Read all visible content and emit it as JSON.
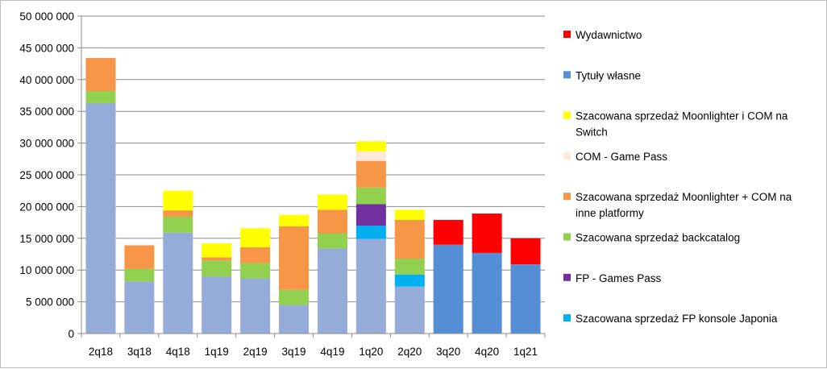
{
  "chart_data": {
    "type": "bar",
    "stacked": true,
    "categories": [
      "2q18",
      "3q18",
      "4q18",
      "1q19",
      "2q19",
      "3q19",
      "4q19",
      "1q20",
      "2q20",
      "3q20",
      "4q20",
      "1q21"
    ],
    "ylim": [
      0,
      50000000
    ],
    "yticks": [
      0,
      5000000,
      10000000,
      15000000,
      20000000,
      25000000,
      30000000,
      35000000,
      40000000,
      45000000,
      50000000
    ],
    "ytick_labels": [
      "0",
      "5 000 000",
      "10 000 000",
      "15 000 000",
      "20 000 000",
      "25 000 000",
      "30 000 000",
      "35 000 000",
      "40 000 000",
      "45 000 000",
      "50 000 000"
    ],
    "grid": true,
    "legend_position": "right",
    "stack_order_bottom_to_top": [
      "Tytuły własne",
      "Szacowana sprzedaż FP konsole Japonia",
      "FP - Games Pass",
      "Szacowana sprzedaż backcatalog",
      "Szacowana sprzedaż Moonlighter + COM na inne platformy",
      "COM - Game Pass",
      "Szacowana sprzedaż Moonlighter i COM na Switch",
      "Wydawnictwo"
    ],
    "legend": [
      {
        "name": "Wydawnictwo",
        "color": "#ff0000"
      },
      {
        "name": "Tytuły własne",
        "color": "#558ed5"
      },
      {
        "name": "Szacowana sprzedaż Moonlighter i COM na Switch",
        "lines": [
          "Szacowana sprzedaż Moonlighter i COM na",
          "Switch"
        ],
        "color": "#ffff00"
      },
      {
        "name": "COM - Game Pass",
        "color": "#fde9d9"
      },
      {
        "name": "Szacowana sprzedaż Moonlighter + COM na inne platformy",
        "lines": [
          "Szacowana sprzedaż Moonlighter + COM na",
          "inne platformy"
        ],
        "color": "#f79646"
      },
      {
        "name": "Szacowana sprzedaż backcatalog",
        "color": "#92d050"
      },
      {
        "name": "FP - Games Pass",
        "color": "#7030a0"
      },
      {
        "name": "Szacowana sprzedaż FP konsole Japonia",
        "color": "#00b0f0"
      }
    ],
    "bars": [
      {
        "category": "2q18",
        "segments": [
          {
            "value": 36300000,
            "color": "#95abd8"
          },
          {
            "value": 1900000,
            "color": "#92d050"
          },
          {
            "value": 5200000,
            "color": "#f79646"
          }
        ]
      },
      {
        "category": "3q18",
        "segments": [
          {
            "value": 8200000,
            "color": "#95abd8"
          },
          {
            "value": 2000000,
            "color": "#92d050"
          },
          {
            "value": 3700000,
            "color": "#f79646"
          }
        ]
      },
      {
        "category": "4q18",
        "segments": [
          {
            "value": 15900000,
            "color": "#95abd8"
          },
          {
            "value": 2500000,
            "color": "#92d050"
          },
          {
            "value": 1000000,
            "color": "#f79646"
          },
          {
            "value": 3100000,
            "color": "#ffff00"
          }
        ]
      },
      {
        "category": "1q19",
        "segments": [
          {
            "value": 9000000,
            "color": "#95abd8"
          },
          {
            "value": 2500000,
            "color": "#92d050"
          },
          {
            "value": 500000,
            "color": "#f79646"
          },
          {
            "value": 2200000,
            "color": "#ffff00"
          }
        ]
      },
      {
        "category": "2q19",
        "segments": [
          {
            "value": 8700000,
            "color": "#95abd8"
          },
          {
            "value": 2400000,
            "color": "#92d050"
          },
          {
            "value": 2500000,
            "color": "#f79646"
          },
          {
            "value": 3000000,
            "color": "#ffff00"
          }
        ]
      },
      {
        "category": "3q19",
        "segments": [
          {
            "value": 4500000,
            "color": "#95abd8"
          },
          {
            "value": 2400000,
            "color": "#92d050"
          },
          {
            "value": 10000000,
            "color": "#f79646"
          },
          {
            "value": 1800000,
            "color": "#ffff00"
          }
        ]
      },
      {
        "category": "4q19",
        "segments": [
          {
            "value": 13400000,
            "color": "#95abd8"
          },
          {
            "value": 2400000,
            "color": "#92d050"
          },
          {
            "value": 3700000,
            "color": "#f79646"
          },
          {
            "value": 2400000,
            "color": "#ffff00"
          }
        ]
      },
      {
        "category": "1q20",
        "segments": [
          {
            "value": 14900000,
            "color": "#95abd8"
          },
          {
            "value": 2100000,
            "color": "#00b0f0"
          },
          {
            "value": 3400000,
            "color": "#7030a0"
          },
          {
            "value": 2600000,
            "color": "#92d050"
          },
          {
            "value": 4200000,
            "color": "#f79646"
          },
          {
            "value": 1500000,
            "color": "#fde9d9"
          },
          {
            "value": 1600000,
            "color": "#ffff00"
          }
        ]
      },
      {
        "category": "2q20",
        "segments": [
          {
            "value": 7400000,
            "color": "#95abd8"
          },
          {
            "value": 1900000,
            "color": "#00b0f0"
          },
          {
            "value": 2500000,
            "color": "#92d050"
          },
          {
            "value": 6100000,
            "color": "#f79646"
          },
          {
            "value": 1600000,
            "color": "#ffff00"
          }
        ]
      },
      {
        "category": "3q20",
        "segments": [
          {
            "value": 14000000,
            "color": "#558ed5"
          },
          {
            "value": 3900000,
            "color": "#ff0000"
          }
        ]
      },
      {
        "category": "4q20",
        "segments": [
          {
            "value": 12700000,
            "color": "#558ed5"
          },
          {
            "value": 6200000,
            "color": "#ff0000"
          }
        ]
      },
      {
        "category": "1q21",
        "segments": [
          {
            "value": 10900000,
            "color": "#558ed5"
          },
          {
            "value": 4100000,
            "color": "#ff0000"
          }
        ]
      }
    ]
  }
}
